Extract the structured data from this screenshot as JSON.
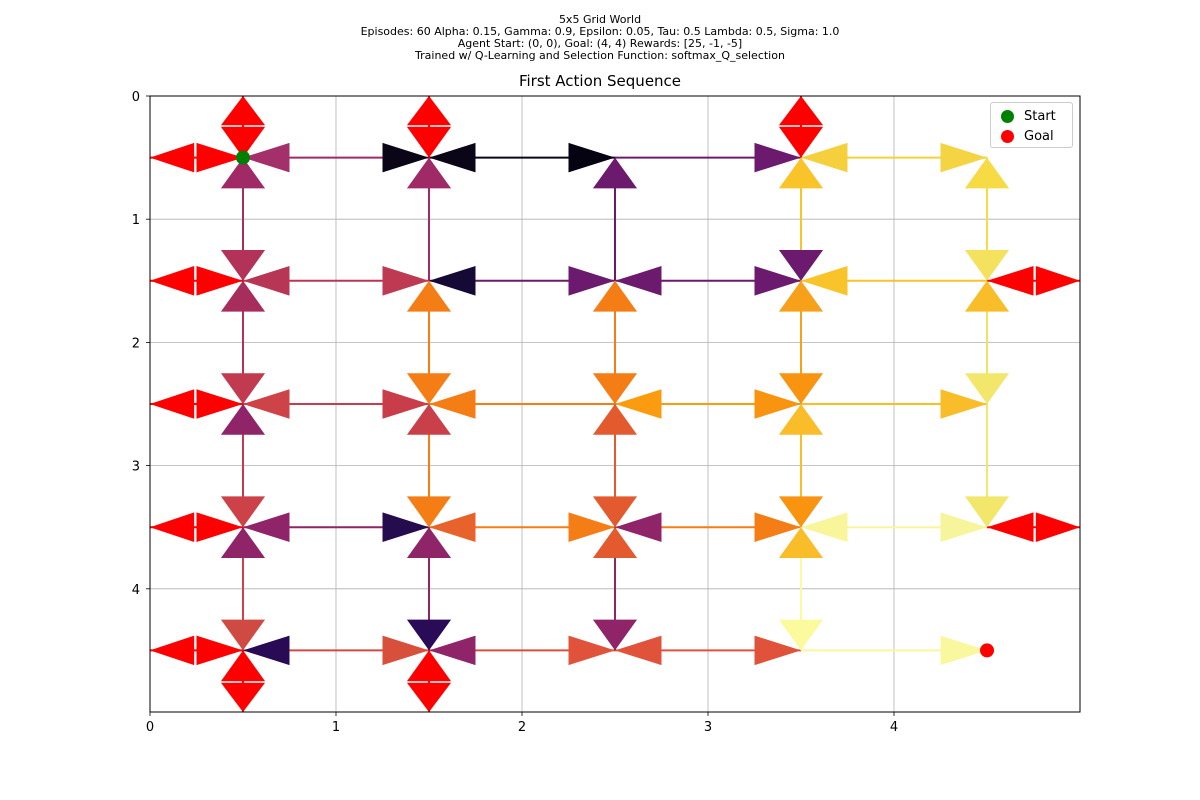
{
  "header": {
    "line1": "5x5 Grid World",
    "line2": "Episodes: 60 Alpha: 0.15, Gamma: 0.9, Epsilon: 0.05, Tau: 0.5 Lambda: 0.5, Sigma: 1.0",
    "line3": "Agent Start: (0, 0), Goal: (4, 4) Rewards: [25, -1, -5]",
    "line4": "Trained w/ Q-Learning and Selection Function: softmax_Q_selection"
  },
  "chart_data": {
    "type": "quiver-grid",
    "title": "First Action Sequence",
    "xlim": [
      0,
      5
    ],
    "ylim": [
      5,
      0
    ],
    "y_inverted": true,
    "x_ticks": [
      0,
      1,
      2,
      3,
      4
    ],
    "y_ticks": [
      0,
      1,
      2,
      3,
      4
    ],
    "grid": true,
    "legend": {
      "placement": "top-right",
      "entries": [
        {
          "label": "Start",
          "color": "#008000"
        },
        {
          "label": "Goal",
          "color": "#ff0000"
        }
      ]
    },
    "start": {
      "x": 0.5,
      "y": 0.5,
      "color": "#008000"
    },
    "goal": {
      "x": 4.5,
      "y": 4.5,
      "color": "#ff0000"
    },
    "wall_color": "#ff0000",
    "arrow_spec": {
      "x_extent": 0.25,
      "y_extent": 0.25
    },
    "cells": [
      {
        "x": 0.5,
        "y": 0.5,
        "up": "#ff0000",
        "down": "#a02a66",
        "left": "#ff0000",
        "right": "#a3306a"
      },
      {
        "x": 1.5,
        "y": 0.5,
        "up": "#ff0000",
        "down": "#a02a66",
        "left": "#0a0618",
        "right": "#0a0618"
      },
      {
        "x": 2.5,
        "y": 0.5,
        "up": null,
        "down": "#6b1a6e",
        "left": "#050312",
        "right": null
      },
      {
        "x": 3.5,
        "y": 0.5,
        "up": "#ff0000",
        "down": "#f9c42a",
        "left": "#6b1a6e",
        "right": "#f6d03c"
      },
      {
        "x": 4.5,
        "y": 0.5,
        "up": null,
        "down": "#f6db44",
        "left": "#f5d443",
        "right": null
      },
      {
        "x": 0.5,
        "y": 1.5,
        "up": "#b2325a",
        "down": "#a72e5c",
        "left": "#ff0000",
        "right": "#b83655"
      },
      {
        "x": 1.5,
        "y": 1.5,
        "up": null,
        "down": "#f57d15",
        "left": "#be3a53",
        "right": "#150a36"
      },
      {
        "x": 2.5,
        "y": 1.5,
        "up": null,
        "down": "#f57d15",
        "left": "#6b1a6e",
        "right": "#6b1a6e"
      },
      {
        "x": 3.5,
        "y": 1.5,
        "up": "#6b1a6e",
        "down": "#f7a11a",
        "left": "#6b1a6e",
        "right": "#f9c42a"
      },
      {
        "x": 4.5,
        "y": 1.5,
        "up": "#f4e25e",
        "down": "#f9bd2a",
        "left": null,
        "right": "#ff0000"
      },
      {
        "x": 0.5,
        "y": 2.5,
        "up": "#c13a50",
        "down": "#8f2469",
        "left": "#ff0000",
        "right": "#cd4347"
      },
      {
        "x": 1.5,
        "y": 2.5,
        "up": "#f57d15",
        "down": "#c9404a",
        "left": "#c93c4a",
        "right": "#f57d15"
      },
      {
        "x": 2.5,
        "y": 2.5,
        "up": "#f57d15",
        "down": "#e35a2f",
        "left": null,
        "right": "#fa9b10"
      },
      {
        "x": 3.5,
        "y": 2.5,
        "up": "#f89410",
        "down": "#f9bd2a",
        "left": "#f89410",
        "right": null
      },
      {
        "x": 4.5,
        "y": 2.5,
        "up": "#f2e76a",
        "down": null,
        "left": "#f9bd2a",
        "right": null
      },
      {
        "x": 0.5,
        "y": 3.5,
        "up": "#cc4248",
        "down": "#8f2469",
        "left": "#ff0000",
        "right": "#8f2469"
      },
      {
        "x": 1.5,
        "y": 3.5,
        "up": "#f57d15",
        "down": "#8f2469",
        "left": "#240c4f",
        "right": "#e8632c"
      },
      {
        "x": 2.5,
        "y": 3.5,
        "up": "#e35a2f",
        "down": "#e35a2f",
        "left": "#f57d15",
        "right": "#8f2469"
      },
      {
        "x": 3.5,
        "y": 3.5,
        "up": "#f89410",
        "down": "#f9bd2a",
        "left": "#f57d15",
        "right": "#f8f59b"
      },
      {
        "x": 4.5,
        "y": 3.5,
        "up": "#f2e76a",
        "down": null,
        "left": "#f6f59b",
        "right": "#ff0000"
      },
      {
        "x": 0.5,
        "y": 4.5,
        "up": "#d04a44",
        "down": "#ff0000",
        "left": "#ff0000",
        "right": "#280b54"
      },
      {
        "x": 1.5,
        "y": 4.5,
        "up": "#2a0b57",
        "down": "#ff0000",
        "left": "#d8503c",
        "right": "#8f2469"
      },
      {
        "x": 2.5,
        "y": 4.5,
        "up": "#8f2469",
        "down": null,
        "left": "#e0533a",
        "right": "#e0533a"
      },
      {
        "x": 3.5,
        "y": 4.5,
        "up": "#fbfb9e",
        "down": null,
        "left": "#e0533a",
        "right": null
      },
      {
        "x": 4.5,
        "y": 4.5,
        "up": null,
        "down": null,
        "left": "#f9f89e",
        "right": null
      }
    ],
    "links": [
      {
        "from": [
          0.5,
          0.5
        ],
        "to": [
          1.5,
          0.5
        ],
        "color": "#a02a66"
      },
      {
        "from": [
          1.5,
          0.5
        ],
        "to": [
          2.5,
          0.5
        ],
        "color": "#0a0618"
      },
      {
        "from": [
          2.5,
          0.5
        ],
        "to": [
          3.5,
          0.5
        ],
        "color": "#6b1a6e"
      },
      {
        "from": [
          3.5,
          0.5
        ],
        "to": [
          4.5,
          0.5
        ],
        "color": "#f6d03c"
      },
      {
        "from": [
          0.5,
          1.5
        ],
        "to": [
          1.5,
          1.5
        ],
        "color": "#b83655"
      },
      {
        "from": [
          1.5,
          1.5
        ],
        "to": [
          2.5,
          1.5
        ],
        "color": "#6b1a6e"
      },
      {
        "from": [
          2.5,
          1.5
        ],
        "to": [
          3.5,
          1.5
        ],
        "color": "#6b1a6e"
      },
      {
        "from": [
          3.5,
          1.5
        ],
        "to": [
          4.5,
          1.5
        ],
        "color": "#f9c42a"
      },
      {
        "from": [
          0.5,
          2.5
        ],
        "to": [
          1.5,
          2.5
        ],
        "color": "#c93c4a"
      },
      {
        "from": [
          1.5,
          2.5
        ],
        "to": [
          2.5,
          2.5
        ],
        "color": "#f57d15"
      },
      {
        "from": [
          2.5,
          2.5
        ],
        "to": [
          3.5,
          2.5
        ],
        "color": "#fa9b10"
      },
      {
        "from": [
          3.5,
          2.5
        ],
        "to": [
          4.5,
          2.5
        ],
        "color": "#f9bd2a"
      },
      {
        "from": [
          0.5,
          3.5
        ],
        "to": [
          1.5,
          3.5
        ],
        "color": "#8f2469"
      },
      {
        "from": [
          1.5,
          3.5
        ],
        "to": [
          2.5,
          3.5
        ],
        "color": "#f57d15"
      },
      {
        "from": [
          2.5,
          3.5
        ],
        "to": [
          3.5,
          3.5
        ],
        "color": "#f57d15"
      },
      {
        "from": [
          3.5,
          3.5
        ],
        "to": [
          4.5,
          3.5
        ],
        "color": "#f8f59b"
      },
      {
        "from": [
          0.5,
          4.5
        ],
        "to": [
          1.5,
          4.5
        ],
        "color": "#d04a44"
      },
      {
        "from": [
          1.5,
          4.5
        ],
        "to": [
          2.5,
          4.5
        ],
        "color": "#d8503c"
      },
      {
        "from": [
          2.5,
          4.5
        ],
        "to": [
          3.5,
          4.5
        ],
        "color": "#e0533a"
      },
      {
        "from": [
          3.5,
          4.5
        ],
        "to": [
          4.5,
          4.5
        ],
        "color": "#f9f89e"
      },
      {
        "from": [
          0.5,
          0.5
        ],
        "to": [
          0.5,
          1.5
        ],
        "color": "#a72e5c"
      },
      {
        "from": [
          0.5,
          1.5
        ],
        "to": [
          0.5,
          2.5
        ],
        "color": "#b2325a"
      },
      {
        "from": [
          0.5,
          2.5
        ],
        "to": [
          0.5,
          3.5
        ],
        "color": "#c13a50"
      },
      {
        "from": [
          0.5,
          3.5
        ],
        "to": [
          0.5,
          4.5
        ],
        "color": "#cc4248"
      },
      {
        "from": [
          1.5,
          0.5
        ],
        "to": [
          1.5,
          1.5
        ],
        "color": "#a02a66"
      },
      {
        "from": [
          1.5,
          1.5
        ],
        "to": [
          1.5,
          2.5
        ],
        "color": "#f57d15"
      },
      {
        "from": [
          1.5,
          2.5
        ],
        "to": [
          1.5,
          3.5
        ],
        "color": "#f57d15"
      },
      {
        "from": [
          1.5,
          3.5
        ],
        "to": [
          1.5,
          4.5
        ],
        "color": "#8f2469"
      },
      {
        "from": [
          2.5,
          0.5
        ],
        "to": [
          2.5,
          1.5
        ],
        "color": "#6b1a6e"
      },
      {
        "from": [
          2.5,
          1.5
        ],
        "to": [
          2.5,
          2.5
        ],
        "color": "#f57d15"
      },
      {
        "from": [
          2.5,
          2.5
        ],
        "to": [
          2.5,
          3.5
        ],
        "color": "#e35a2f"
      },
      {
        "from": [
          2.5,
          3.5
        ],
        "to": [
          2.5,
          4.5
        ],
        "color": "#8f2469"
      },
      {
        "from": [
          3.5,
          0.5
        ],
        "to": [
          3.5,
          1.5
        ],
        "color": "#f9c42a"
      },
      {
        "from": [
          3.5,
          1.5
        ],
        "to": [
          3.5,
          2.5
        ],
        "color": "#f7a11a"
      },
      {
        "from": [
          3.5,
          2.5
        ],
        "to": [
          3.5,
          3.5
        ],
        "color": "#f9bd2a"
      },
      {
        "from": [
          3.5,
          3.5
        ],
        "to": [
          3.5,
          4.5
        ],
        "color": "#fbfb9e"
      },
      {
        "from": [
          4.5,
          0.5
        ],
        "to": [
          4.5,
          1.5
        ],
        "color": "#f6db44"
      },
      {
        "from": [
          4.5,
          1.5
        ],
        "to": [
          4.5,
          2.5
        ],
        "color": "#f4e25e"
      },
      {
        "from": [
          4.5,
          2.5
        ],
        "to": [
          4.5,
          3.5
        ],
        "color": "#f2e76a"
      },
      {
        "from": [
          0.5,
          0.5
        ],
        "to": [
          0.0,
          0.5
        ],
        "color": "#ff0000"
      },
      {
        "from": [
          0.5,
          1.5
        ],
        "to": [
          0.0,
          1.5
        ],
        "color": "#ff0000"
      },
      {
        "from": [
          0.5,
          2.5
        ],
        "to": [
          0.0,
          2.5
        ],
        "color": "#ff0000"
      },
      {
        "from": [
          0.5,
          3.5
        ],
        "to": [
          0.0,
          3.5
        ],
        "color": "#ff0000"
      },
      {
        "from": [
          0.5,
          4.5
        ],
        "to": [
          0.0,
          4.5
        ],
        "color": "#ff0000"
      },
      {
        "from": [
          0.5,
          0.5
        ],
        "to": [
          0.5,
          0.0
        ],
        "color": "#ff0000"
      },
      {
        "from": [
          1.5,
          0.5
        ],
        "to": [
          1.5,
          0.0
        ],
        "color": "#ff0000"
      },
      {
        "from": [
          3.5,
          0.5
        ],
        "to": [
          3.5,
          0.0
        ],
        "color": "#ff0000"
      },
      {
        "from": [
          0.5,
          4.5
        ],
        "to": [
          0.5,
          5.0
        ],
        "color": "#ff0000"
      },
      {
        "from": [
          1.5,
          4.5
        ],
        "to": [
          1.5,
          5.0
        ],
        "color": "#ff0000"
      },
      {
        "from": [
          4.5,
          1.5
        ],
        "to": [
          5.0,
          1.5
        ],
        "color": "#ff0000"
      },
      {
        "from": [
          4.5,
          3.5
        ],
        "to": [
          5.0,
          3.5
        ],
        "color": "#ff0000"
      }
    ]
  }
}
